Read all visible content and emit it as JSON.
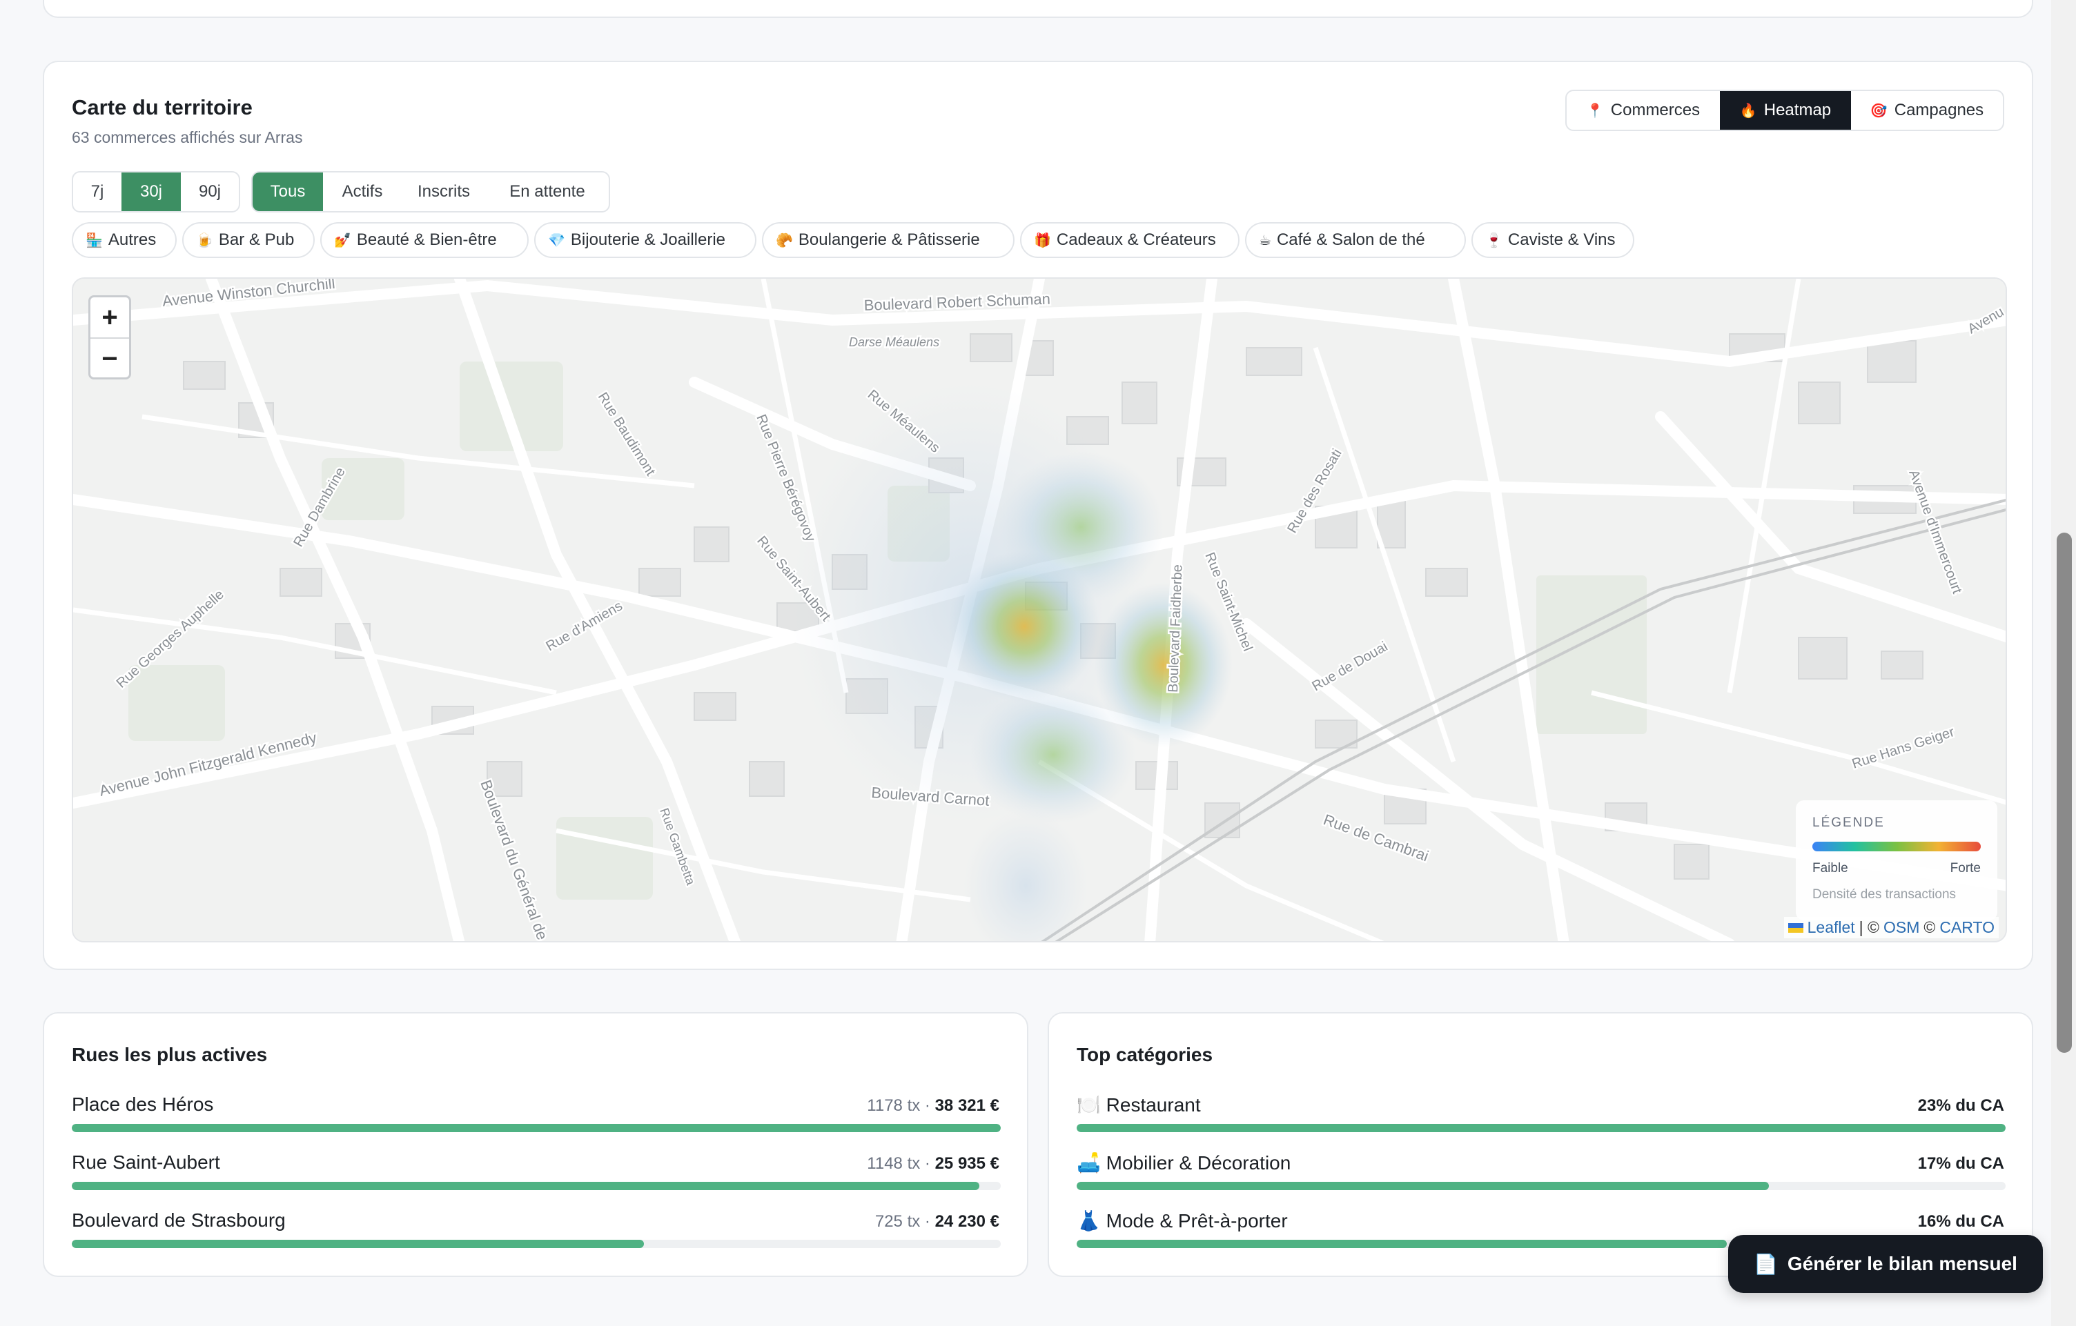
{
  "map_section": {
    "title": "Carte du territoire",
    "subtitle": "63 commerces affichés sur Arras",
    "view_toggle": [
      {
        "label": "Commerces",
        "icon": "📍",
        "active": false
      },
      {
        "label": "Heatmap",
        "icon": "🔥",
        "active": true
      },
      {
        "label": "Campagnes",
        "icon": "🎯",
        "active": false
      }
    ],
    "period_filters": [
      {
        "label": "7j",
        "active": false
      },
      {
        "label": "30j",
        "active": true
      },
      {
        "label": "90j",
        "active": false
      }
    ],
    "status_filters": [
      {
        "label": "Tous",
        "active": true
      },
      {
        "label": "Actifs",
        "active": false
      },
      {
        "label": "Inscrits",
        "active": false
      },
      {
        "label": "En attente",
        "active": false
      }
    ],
    "categories": [
      {
        "icon": "🏪",
        "label": "Autres"
      },
      {
        "icon": "🍺",
        "label": "Bar & Pub"
      },
      {
        "icon": "💅",
        "label": "Beauté & Bien-être"
      },
      {
        "icon": "💎",
        "label": "Bijouterie & Joaillerie"
      },
      {
        "icon": "🥐",
        "label": "Boulangerie & Pâtisserie"
      },
      {
        "icon": "🎁",
        "label": "Cadeaux & Créateurs"
      },
      {
        "icon": "☕",
        "label": "Café & Salon de thé"
      },
      {
        "icon": "🍷",
        "label": "Caviste & Vins"
      }
    ],
    "map": {
      "zoom_in": "+",
      "zoom_out": "−",
      "street_labels": [
        "Avenue Winston Churchill",
        "Boulevard Robert Schuman",
        "Darse Méaulens",
        "Rue Baudimont",
        "Rue Pierre Bérégovoy",
        "Rue Méaulens",
        "Rue Dambrine",
        "Rue Saint-Aubert",
        "Rue d'Amiens",
        "Rue Georges Auphelle",
        "Avenue John Fitzgerald Kennedy",
        "Boulevard Faidherbe",
        "Rue Saint-Michel",
        "Rue des Rosati",
        "Rue de Douai",
        "Avenue d'Immercourt",
        "Rue Hans Geiger",
        "Boulevard Carnot",
        "Rue de Cambrai",
        "Boulevard du Général de Gaulle",
        "Rue Gambetta",
        "Avenu"
      ],
      "legend": {
        "title": "LÉGENDE",
        "low": "Faible",
        "high": "Forte",
        "note": "Densité des transactions"
      },
      "attribution": {
        "leaflet": "Leaflet",
        "sep1": "| ©",
        "osm": "OSM",
        "sep2": "©",
        "carto": "CARTO"
      }
    }
  },
  "streets": {
    "title": "Rues les plus actives",
    "rows": [
      {
        "name": "Place des Héros",
        "tx": "1178 tx ·",
        "amount": "38 321 €",
        "share": 1.0
      },
      {
        "name": "Rue Saint-Aubert",
        "tx": "1148 tx ·",
        "amount": "25 935 €",
        "share": 0.977
      },
      {
        "name": "Boulevard de Strasbourg",
        "tx": "725 tx ·",
        "amount": "24 230 €",
        "share": 0.616
      }
    ]
  },
  "top_categories": {
    "title": "Top catégories",
    "rows": [
      {
        "icon": "🍽️",
        "name": "Restaurant",
        "value": "23% du CA",
        "share": 1.0
      },
      {
        "icon": "🛋️",
        "name": "Mobilier & Décoration",
        "value": "17% du CA",
        "share": 0.745
      },
      {
        "icon": "👗",
        "name": "Mode & Prêt-à-porter",
        "value": "16% du CA",
        "share": 0.7
      }
    ]
  },
  "fab": {
    "icon": "📄",
    "label": "Générer le bilan mensuel"
  },
  "colors": {
    "accent_green": "#3d8f63",
    "bar_green": "#4fb283",
    "dark": "#151a22"
  }
}
